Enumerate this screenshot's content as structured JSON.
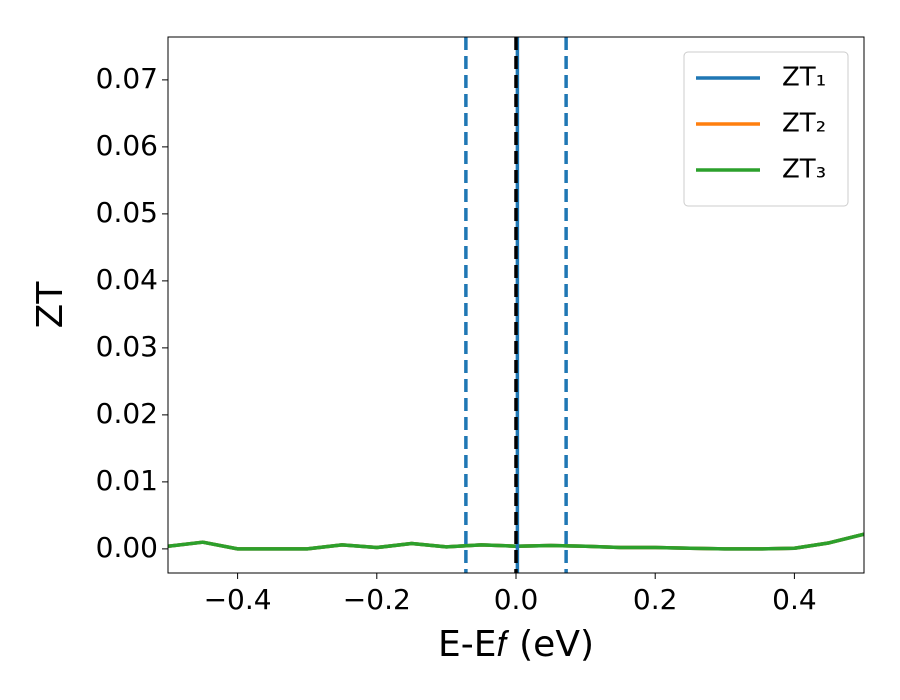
{
  "chart_data": {
    "type": "line",
    "xlabel": "E-E𝑓 (eV)",
    "ylabel": "ZT",
    "x": [
      -0.5,
      -0.45,
      -0.4,
      -0.35,
      -0.3,
      -0.25,
      -0.2,
      -0.15,
      -0.1,
      -0.05,
      0,
      0.05,
      0.1,
      0.15,
      0.2,
      0.25,
      0.3,
      0.35,
      0.4,
      0.45,
      0.5
    ],
    "series": [
      {
        "name": "ZT₁",
        "color": "#1f77b4",
        "values": [
          0.0004,
          0.001,
          0.0,
          0.0,
          0.0,
          0.0006,
          0.0002,
          0.0008,
          0.0003,
          0.0006,
          0.0004,
          0.0005,
          0.0004,
          0.0002,
          0.0002,
          0.0001,
          0.0,
          0.0,
          0.0001,
          0.0009,
          0.0022
        ]
      },
      {
        "name": "ZT₂",
        "color": "#ff7f0e",
        "values": [
          0.0004,
          0.001,
          0.0,
          0.0,
          0.0,
          0.0006,
          0.0002,
          0.0008,
          0.0003,
          0.0006,
          0.0004,
          0.0005,
          0.0004,
          0.0002,
          0.0002,
          0.0001,
          0.0,
          0.0,
          0.0001,
          0.0009,
          0.0022
        ]
      },
      {
        "name": "ZT₃",
        "color": "#2ca02c",
        "values": [
          0.0004,
          0.001,
          0.0,
          0.0,
          0.0,
          0.0006,
          0.0002,
          0.0008,
          0.0003,
          0.0006,
          0.0004,
          0.0005,
          0.0004,
          0.0002,
          0.0002,
          0.0001,
          0.0,
          0.0,
          0.0001,
          0.0009,
          0.0022
        ]
      }
    ],
    "vlines": [
      {
        "x": -0.072,
        "color": "#1f77b4",
        "dashed": true
      },
      {
        "x": 0.072,
        "color": "#1f77b4",
        "dashed": true
      },
      {
        "x": 0.002,
        "color": "#1f77b4",
        "dashed": false
      },
      {
        "x": 0,
        "color": "#000000",
        "dashed": true
      }
    ],
    "xlim": [
      -0.5,
      0.5
    ],
    "xticks": [
      {
        "value": -0.4,
        "label": "−0.4"
      },
      {
        "value": -0.2,
        "label": "−0.2"
      },
      {
        "value": 0,
        "label": "0.0"
      },
      {
        "value": 0.2,
        "label": "0.2"
      },
      {
        "value": 0.4,
        "label": "0.4"
      }
    ],
    "ylim": [
      -0.0036,
      0.0764
    ],
    "yticks": [
      {
        "value": 0,
        "label": "0.00"
      },
      {
        "value": 0.01,
        "label": "0.01"
      },
      {
        "value": 0.02,
        "label": "0.02"
      },
      {
        "value": 0.03,
        "label": "0.03"
      },
      {
        "value": 0.04,
        "label": "0.04"
      },
      {
        "value": 0.05,
        "label": "0.05"
      },
      {
        "value": 0.06,
        "label": "0.06"
      },
      {
        "value": 0.07,
        "label": "0.07"
      }
    ],
    "legend": "upper right"
  }
}
